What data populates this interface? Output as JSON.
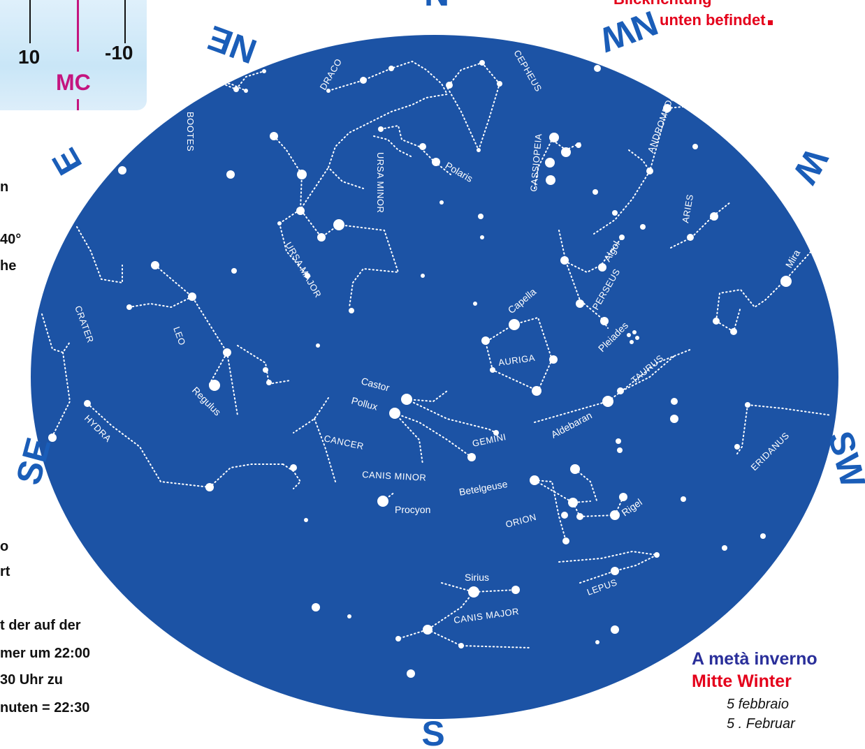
{
  "inset": {
    "left_value": "10",
    "right_value": "-10",
    "mc_label": "MC"
  },
  "red_note": {
    "top_fragment": "Blickrichtung",
    "line": "unten befindet"
  },
  "left_fragments": [
    "n",
    "40°",
    "he",
    "o",
    "rt"
  ],
  "bottom_text": [
    "t der auf der",
    "mer um 22:00",
    "30 Uhr zu",
    "nuten = 22:30"
  ],
  "cardinals": {
    "N": "N",
    "NE": "NE",
    "NW": "NW",
    "E": "E",
    "W": "W",
    "SE": "SE",
    "SW": "SW",
    "S": "S"
  },
  "constellations": {
    "bootes": "BOOTES",
    "draco": "DRACO",
    "cepheus": "CEPHEUS",
    "andromeda": "ANDROMEDA",
    "cassiopeia": "CASSIOPEIA",
    "ursa_minor": "URSA MINOR",
    "ursa_major": "URSA MAJOR",
    "aries": "ARIES",
    "perseus": "PERSEUS",
    "crater": "CRATER",
    "leo": "LEO",
    "auriga": "AURIGA",
    "taurus": "TAURUS",
    "hydra": "HYDRA",
    "cancer": "CANCER",
    "gemini": "GEMINI",
    "canis_minor": "CANIS MINOR",
    "orion": "ORION",
    "eridanus": "ERIDANUS",
    "lepus": "LEPUS",
    "canis_major": "CANIS MAJOR"
  },
  "stars": {
    "polaris": "Polaris",
    "algol": "Algol",
    "capella": "Capella",
    "pleiades": "Pleiades",
    "mira": "Mira",
    "regulus": "Regulus",
    "castor": "Castor",
    "pollux": "Pollux",
    "aldebaran": "Aldebaran",
    "betelgeuse": "Betelgeuse",
    "procyon": "Procyon",
    "rigel": "Rigel",
    "sirius": "Sirius"
  },
  "season": {
    "italian": "A metà inverno",
    "german": "Mitte Winter",
    "date_it": "5 febbraio",
    "date_de": "5 . Februar"
  },
  "colors": {
    "sky": "#1c53a5",
    "cardinal": "#1a5db8",
    "mc": "#c4157f",
    "red": "#e4001b",
    "italian_title": "#2a2f9a"
  }
}
